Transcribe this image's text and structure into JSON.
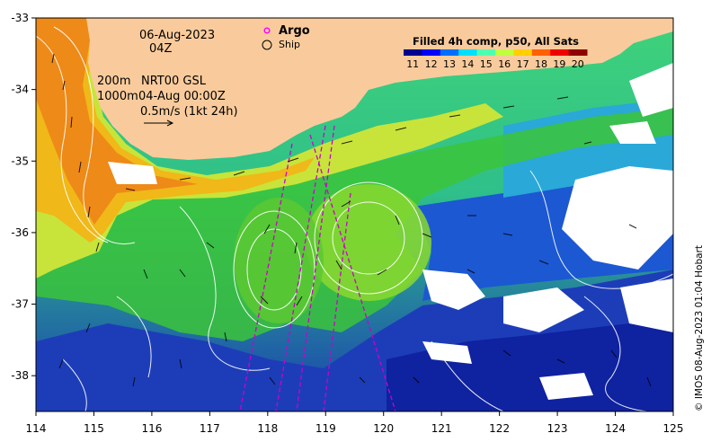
{
  "map": {
    "lon_range": [
      114,
      125
    ],
    "lat_range": [
      -38.5,
      -33
    ],
    "lon_ticks": [
      "114",
      "115",
      "116",
      "117",
      "118",
      "119",
      "120",
      "121",
      "122",
      "123",
      "124",
      "125"
    ],
    "lat_ticks": [
      "-33",
      "-34",
      "-35",
      "-36",
      "-37",
      "-38"
    ],
    "date": "06-Aug-2023",
    "time": "04Z",
    "legend": {
      "argo": "Argo",
      "ship": "Ship",
      "argo_color": "#ff00ff"
    },
    "overlay": {
      "line1_depth": "200m",
      "line1_text": "NRT00 GSL",
      "line2_depth": "1000m",
      "line2_text": "04-Aug 00:00Z",
      "scale_text": "0.5m/s (1kt 24h)"
    },
    "colorbar": {
      "title": "Filled 4h comp, p50, All Sats",
      "ticks": [
        "11",
        "12",
        "13",
        "14",
        "15",
        "16",
        "17",
        "18",
        "19",
        "20"
      ],
      "colors": [
        "#00008f",
        "#0000ff",
        "#006fff",
        "#00dfff",
        "#4fffaf",
        "#bfff3f",
        "#ffcf00",
        "#ff6000",
        "#ef0000",
        "#8f0000"
      ]
    },
    "credit": "© IMOS 08-Aug-2023 01:04 Hobart",
    "colors": {
      "land": "#f9cb9c",
      "cloud": "#ffffff",
      "eddy_contour": "#ffffff",
      "ship_track": "#cc00cc"
    }
  }
}
